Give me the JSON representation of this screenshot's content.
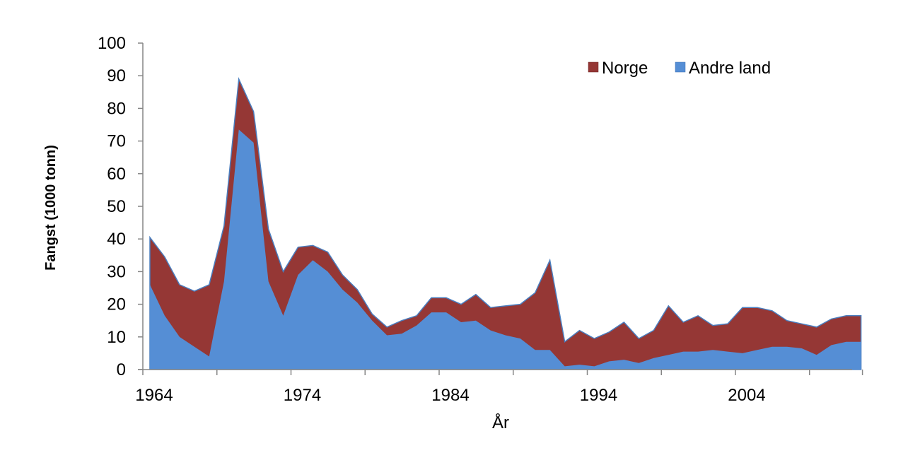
{
  "chart_data": {
    "type": "area",
    "stacked": true,
    "title": "",
    "xlabel": "År",
    "ylabel": "Fangst  (1000 tonn)",
    "ylim": [
      0,
      100
    ],
    "yticks": [
      0,
      10,
      20,
      30,
      40,
      50,
      60,
      70,
      80,
      90,
      100
    ],
    "xlim": [
      1964,
      2012
    ],
    "xtick_labels": [
      {
        "year": 1964,
        "label": "1964"
      },
      {
        "year": 1974,
        "label": "1974"
      },
      {
        "year": 1984,
        "label": "1984"
      },
      {
        "year": 1994,
        "label": "1994"
      },
      {
        "year": 2004,
        "label": "2004"
      }
    ],
    "minor_xticks": [
      1969,
      1979,
      1989,
      1999,
      2009
    ],
    "x": [
      1964,
      1965,
      1966,
      1967,
      1968,
      1969,
      1970,
      1971,
      1972,
      1973,
      1974,
      1975,
      1976,
      1977,
      1978,
      1979,
      1980,
      1981,
      1982,
      1983,
      1984,
      1985,
      1986,
      1987,
      1988,
      1989,
      1990,
      1991,
      1992,
      1993,
      1994,
      1995,
      1996,
      1997,
      1998,
      1999,
      2000,
      2001,
      2002,
      2003,
      2004,
      2005,
      2006,
      2007,
      2008,
      2009,
      2010,
      2011,
      2012
    ],
    "series": [
      {
        "name": "Andre land",
        "color": "#558ED5",
        "values": [
          26,
          16.5,
          10,
          7,
          4,
          27,
          73.5,
          69.5,
          27,
          16.5,
          29,
          33.5,
          30,
          24.5,
          20.5,
          15,
          10.5,
          11,
          13.5,
          17.5,
          17.5,
          14.5,
          15,
          12,
          10.5,
          9.5,
          6,
          6,
          1,
          1.5,
          1,
          2.5,
          3,
          2,
          3.5,
          4.5,
          5.5,
          5.5,
          6,
          5.5,
          5,
          6,
          7,
          7,
          6.5,
          4.5,
          7.5,
          8.5,
          8.5
        ]
      },
      {
        "name": "Norge",
        "color": "#953735",
        "values": [
          14.5,
          18,
          16,
          17,
          22,
          17,
          15.5,
          9.5,
          16,
          13.5,
          8.5,
          4.5,
          6,
          4.5,
          4,
          2,
          2.5,
          4,
          3,
          4.5,
          4.5,
          5.5,
          8,
          7,
          9,
          10.5,
          17.5,
          27.5,
          7.5,
          10.5,
          8.5,
          9,
          11.5,
          7.5,
          8.5,
          15,
          9,
          11,
          7.5,
          8.5,
          14,
          13,
          11,
          8,
          7.5,
          8.5,
          8,
          8,
          8
        ]
      }
    ],
    "legend": {
      "position": "top-right",
      "entries": [
        "Norge",
        "Andre land"
      ]
    }
  }
}
